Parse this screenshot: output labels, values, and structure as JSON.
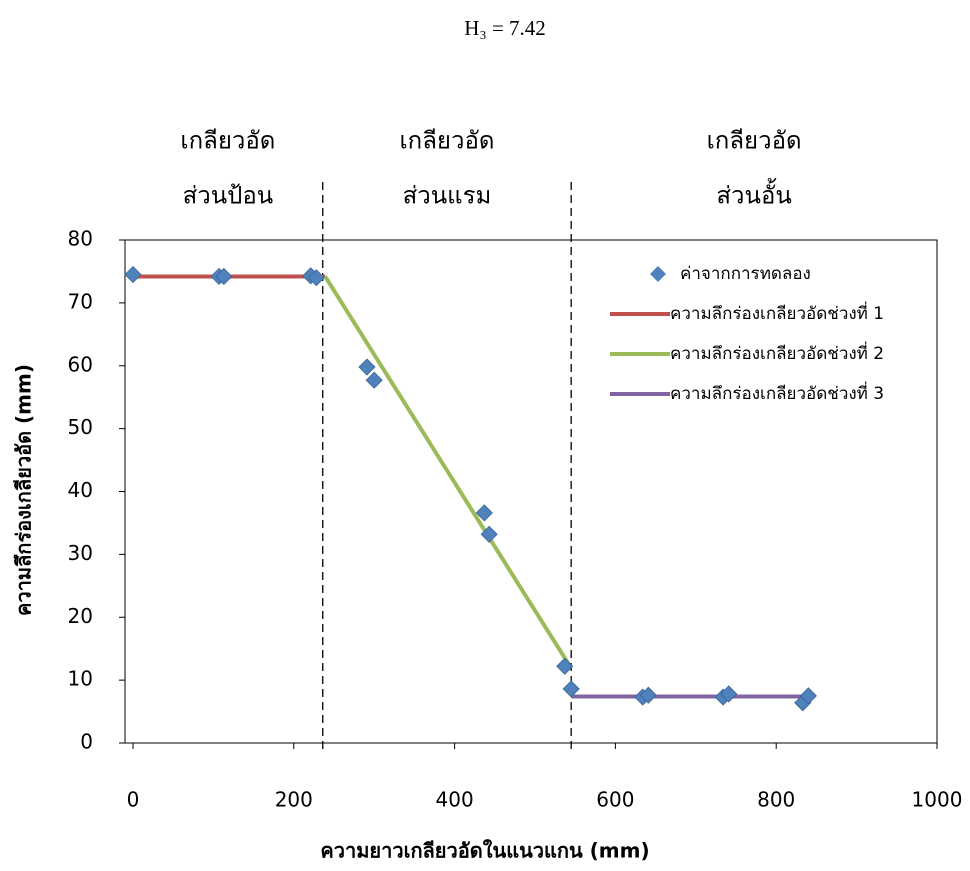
{
  "chart_data": {
    "type": "scatter",
    "title": "H₃ = 7.42",
    "x_label": "ความยาวเกลียวอัดในแนวแกน (mm)",
    "y_label": "ความลึกร่องเกลียวอัด (mm)",
    "xlim": [
      0,
      1000
    ],
    "xticks": [
      0,
      200,
      400,
      600,
      800,
      1000
    ],
    "ylim": [
      0,
      80
    ],
    "yticks": [
      0,
      10,
      20,
      30,
      40,
      50,
      60,
      70,
      80
    ],
    "dividers": [
      236,
      545
    ],
    "sections": [
      [
        "เกลียวอัด",
        "ส่วนป้อน"
      ],
      [
        "เกลียวอัด",
        "ส่วนแรม"
      ],
      [
        "เกลียวอัด",
        "ส่วนอั้น"
      ]
    ],
    "legend": "upper right",
    "series": [
      {
        "name": "ค่าจากการทดลอง",
        "mode": "markers",
        "color": "#4f81bd",
        "x": [
          0,
          107,
          113,
          221,
          228,
          291,
          300,
          437,
          443,
          537,
          545,
          634,
          641,
          734,
          741,
          833,
          840
        ],
        "values": [
          74.5,
          74.2,
          74.2,
          74.3,
          74.0,
          59.8,
          57.7,
          36.6,
          33.2,
          12.2,
          8.6,
          7.3,
          7.6,
          7.3,
          7.8,
          6.4,
          7.5
        ]
      },
      {
        "name": "ความลึกร่องเกลียวอัดช่วงที่ 1",
        "mode": "line",
        "color": "#c0504d",
        "x": [
          0,
          239
        ],
        "values": [
          74.2,
          74.2
        ]
      },
      {
        "name": "ความลึกร่องเกลียวอัดช่วงที่ 2",
        "mode": "line",
        "color": "#9bbb59",
        "x": [
          239,
          545
        ],
        "values": [
          74.2,
          11.9
        ]
      },
      {
        "name": "ความลึกร่องเกลียวอัดช่วงที่ 3",
        "mode": "line",
        "color": "#8064a2",
        "x": [
          545,
          840
        ],
        "values": [
          7.4,
          7.4
        ]
      }
    ]
  }
}
